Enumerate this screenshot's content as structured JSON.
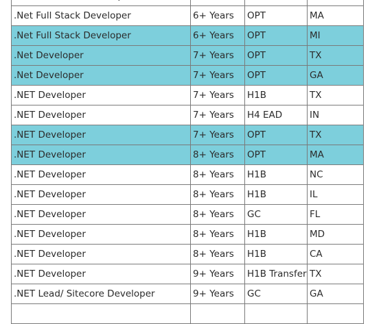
{
  "colors": {
    "highlight_row": "#7dcfdc",
    "grid_line": "#7a7a7a",
    "text": "#2b2b2b"
  },
  "rows": [
    {
      "role": ".NET Full Stack Developer",
      "experience": "",
      "visa": "",
      "state": "",
      "highlight": false,
      "partially_visible": true
    },
    {
      "role": ".Net Full Stack Developer",
      "experience": "6+ Years",
      "visa": "OPT",
      "state": "MA",
      "highlight": false
    },
    {
      "role": ".Net Full Stack Developer",
      "experience": "6+ Years",
      "visa": "OPT",
      "state": "MI",
      "highlight": true
    },
    {
      "role": ".Net Developer",
      "experience": "7+ Years",
      "visa": "OPT",
      "state": "TX",
      "highlight": true
    },
    {
      "role": ".Net Developer",
      "experience": "7+ Years",
      "visa": "OPT",
      "state": "GA",
      "highlight": true
    },
    {
      "role": ".NET Developer",
      "experience": "7+ Years",
      "visa": "H1B",
      "state": "TX",
      "highlight": false
    },
    {
      "role": ".NET Developer",
      "experience": "7+ Years",
      "visa": "H4 EAD",
      "state": "IN",
      "highlight": false
    },
    {
      "role": ".NET Developer",
      "experience": "7+ Years",
      "visa": "OPT",
      "state": "TX",
      "highlight": true
    },
    {
      "role": ".NET Developer",
      "experience": "8+ Years",
      "visa": "OPT",
      "state": "MA",
      "highlight": true
    },
    {
      "role": ".NET Developer",
      "experience": "8+ Years",
      "visa": "H1B",
      "state": "NC",
      "highlight": false
    },
    {
      "role": ".NET Developer",
      "experience": "8+ Years",
      "visa": "H1B",
      "state": "IL",
      "highlight": false
    },
    {
      "role": ".NET Developer",
      "experience": "8+ Years",
      "visa": "GC",
      "state": "FL",
      "highlight": false
    },
    {
      "role": ".NET Developer",
      "experience": "8+ Years",
      "visa": "H1B",
      "state": "MD",
      "highlight": false
    },
    {
      "role": ".NET Developer",
      "experience": "8+ Years",
      "visa": "H1B",
      "state": "CA",
      "highlight": false
    },
    {
      "role": ".NET Developer",
      "experience": "9+ Years",
      "visa": "H1B Transfer",
      "state": "TX",
      "highlight": false
    },
    {
      "role": ".NET Lead/ Sitecore Developer",
      "experience": "9+ Years",
      "visa": "GC",
      "state": "GA",
      "highlight": false
    },
    {
      "role": "",
      "experience": "",
      "visa": "",
      "state": "",
      "highlight": false,
      "partially_visible": true
    }
  ]
}
